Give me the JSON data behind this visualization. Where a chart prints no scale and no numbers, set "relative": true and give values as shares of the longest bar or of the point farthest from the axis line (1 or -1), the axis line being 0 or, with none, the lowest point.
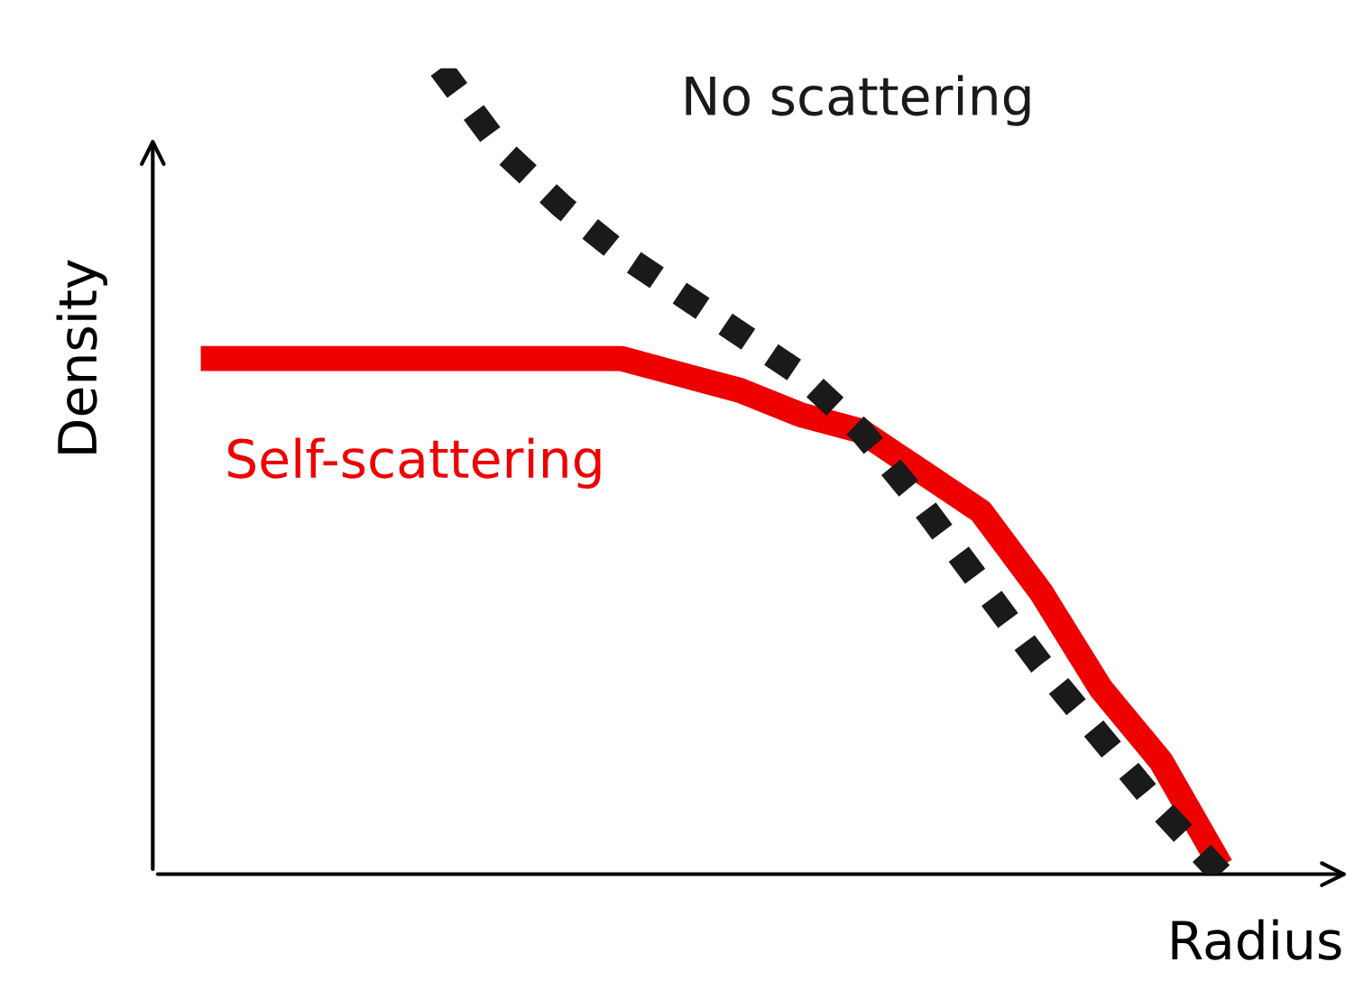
{
  "chart_data": {
    "type": "line",
    "relative": true,
    "xlabel": "Radius",
    "ylabel": "Density",
    "categories": [
      null,
      null,
      null,
      null,
      null,
      null,
      null,
      null,
      null,
      null,
      null,
      null,
      null,
      null,
      null,
      null,
      null,
      null
    ],
    "series": [
      {
        "name": "No scattering",
        "color": "#1a1a1a",
        "line_style": "dotted",
        "values": [
          null,
          null,
          null,
          null,
          1.0,
          0.9,
          0.83,
          0.77,
          0.72,
          0.67,
          0.62,
          0.55,
          0.46,
          0.36,
          0.26,
          0.17,
          0.08,
          0.0
        ]
      },
      {
        "name": "Self-scattering",
        "color": "#ee0000",
        "line_style": "solid",
        "values": [
          0.64,
          0.64,
          0.64,
          0.64,
          0.64,
          0.64,
          0.64,
          0.64,
          0.62,
          0.6,
          0.57,
          0.55,
          0.5,
          0.45,
          0.35,
          0.23,
          0.14,
          0.01
        ]
      }
    ]
  }
}
